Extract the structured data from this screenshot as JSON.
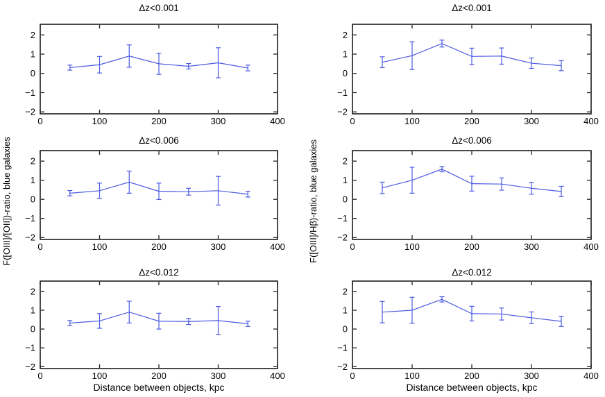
{
  "figure": {
    "xlabel": "Distance between objects, kpc",
    "ylabel_left": "F([OIII]/[OII])-ratio, blue galaxies",
    "ylabel_right": "F([OIII]/Hβ)-ratio, blue galaxies",
    "line_color": "#4a5ae2",
    "frame_color": "#1c1c1c",
    "text_color": "#000000",
    "background": "#ffffff"
  },
  "chart_data": [
    {
      "type": "line",
      "title": "Δz<0.001",
      "series_name": "F([OIII]/[OII])-ratio, blue galaxies",
      "x": [
        50,
        100,
        150,
        200,
        250,
        300,
        350
      ],
      "y": [
        0.3,
        0.45,
        0.9,
        0.5,
        0.37,
        0.55,
        0.28
      ],
      "yerr": [
        0.13,
        0.43,
        0.58,
        0.55,
        0.14,
        0.78,
        0.15
      ],
      "xlim": [
        0,
        400
      ],
      "ylim": [
        -2,
        2
      ],
      "xticks": [
        0,
        100,
        200,
        300,
        400
      ],
      "yticks": [
        -2,
        -1,
        0,
        1,
        2
      ],
      "xlabel": "Distance between objects, kpc",
      "ylabel": "F([OIII]/[OII])-ratio, blue galaxies",
      "grid": false,
      "legend": "none"
    },
    {
      "type": "line",
      "title": "Δz<0.001",
      "series_name": "F([OIII]/Hβ)-ratio, blue galaxies",
      "x": [
        50,
        100,
        150,
        200,
        250,
        300,
        350
      ],
      "y": [
        0.58,
        0.92,
        1.55,
        0.88,
        0.9,
        0.53,
        0.4
      ],
      "yerr": [
        0.28,
        0.72,
        0.18,
        0.43,
        0.42,
        0.27,
        0.26
      ],
      "xlim": [
        0,
        400
      ],
      "ylim": [
        -2,
        2
      ],
      "xticks": [
        0,
        100,
        200,
        300,
        400
      ],
      "yticks": [
        -2,
        -1,
        0,
        1,
        2
      ],
      "xlabel": "Distance between objects, kpc",
      "ylabel": "F([OIII]/Hβ)-ratio, blue galaxies",
      "grid": false,
      "legend": "none"
    },
    {
      "type": "line",
      "title": "Δz<0.006",
      "series_name": "F([OIII]/[OII])-ratio, blue galaxies",
      "x": [
        50,
        100,
        150,
        200,
        250,
        300,
        350
      ],
      "y": [
        0.32,
        0.45,
        0.9,
        0.42,
        0.4,
        0.45,
        0.27
      ],
      "yerr": [
        0.14,
        0.4,
        0.58,
        0.43,
        0.18,
        0.75,
        0.15
      ],
      "xlim": [
        0,
        400
      ],
      "ylim": [
        -2,
        2
      ],
      "xticks": [
        0,
        100,
        200,
        300,
        400
      ],
      "yticks": [
        -2,
        -1,
        0,
        1,
        2
      ],
      "xlabel": "Distance between objects, kpc",
      "ylabel": "F([OIII]/[OII])-ratio, blue galaxies",
      "grid": false,
      "legend": "none"
    },
    {
      "type": "line",
      "title": "Δz<0.006",
      "series_name": "F([OIII]/Hβ)-ratio, blue galaxies",
      "x": [
        50,
        100,
        150,
        200,
        250,
        300,
        350
      ],
      "y": [
        0.6,
        1.0,
        1.58,
        0.82,
        0.8,
        0.58,
        0.41
      ],
      "yerr": [
        0.3,
        0.68,
        0.14,
        0.39,
        0.32,
        0.31,
        0.27
      ],
      "xlim": [
        0,
        400
      ],
      "ylim": [
        -2,
        2
      ],
      "xticks": [
        0,
        100,
        200,
        300,
        400
      ],
      "yticks": [
        -2,
        -1,
        0,
        1,
        2
      ],
      "xlabel": "Distance between objects, kpc",
      "ylabel": "F([OIII]/Hβ)-ratio, blue galaxies",
      "grid": false,
      "legend": "none"
    },
    {
      "type": "line",
      "title": "Δz<0.012",
      "series_name": "F([OIII]/[OII])-ratio, blue galaxies",
      "x": [
        50,
        100,
        150,
        200,
        250,
        300,
        350
      ],
      "y": [
        0.32,
        0.43,
        0.9,
        0.42,
        0.4,
        0.45,
        0.28
      ],
      "yerr": [
        0.13,
        0.39,
        0.58,
        0.42,
        0.16,
        0.75,
        0.14
      ],
      "xlim": [
        0,
        400
      ],
      "ylim": [
        -2,
        2
      ],
      "xticks": [
        0,
        100,
        200,
        300,
        400
      ],
      "yticks": [
        -2,
        -1,
        0,
        1,
        2
      ],
      "xlabel": "Distance between objects, kpc",
      "ylabel": "F([OIII]/[OII])-ratio, blue galaxies",
      "grid": false,
      "legend": "none"
    },
    {
      "type": "line",
      "title": "Δz<0.012",
      "series_name": "F([OIII]/Hβ)-ratio, blue galaxies",
      "x": [
        50,
        100,
        150,
        200,
        250,
        300,
        350
      ],
      "y": [
        0.9,
        1.0,
        1.58,
        0.82,
        0.8,
        0.6,
        0.41
      ],
      "yerr": [
        0.57,
        0.69,
        0.14,
        0.39,
        0.32,
        0.31,
        0.27
      ],
      "xlim": [
        0,
        400
      ],
      "ylim": [
        -2,
        2
      ],
      "xticks": [
        0,
        100,
        200,
        300,
        400
      ],
      "yticks": [
        -2,
        -1,
        0,
        1,
        2
      ],
      "xlabel": "Distance between objects, kpc",
      "ylabel": "F([OIII]/Hβ)-ratio, blue galaxies",
      "grid": false,
      "legend": "none"
    }
  ]
}
